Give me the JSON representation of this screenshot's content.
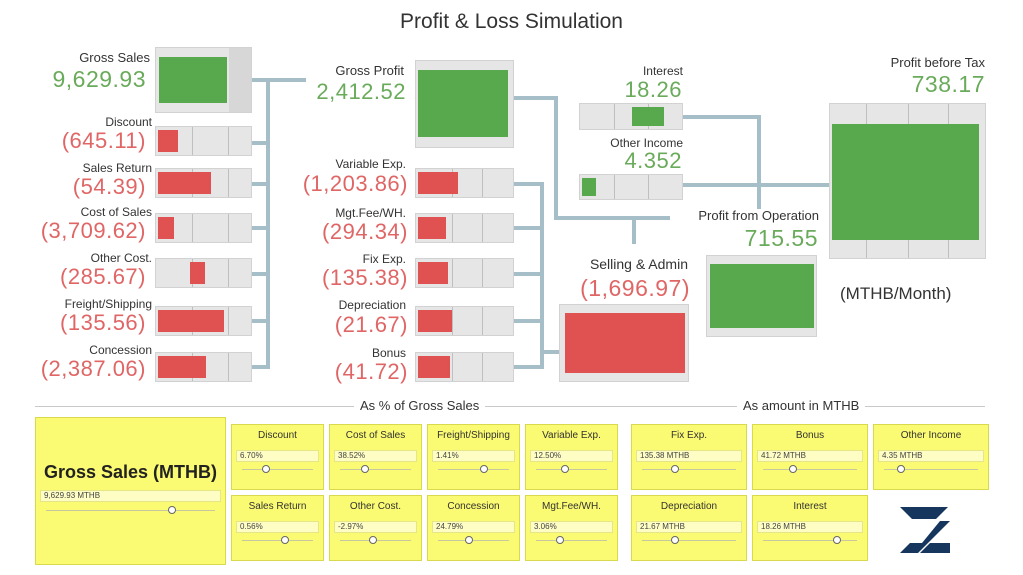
{
  "title": "Profit & Loss Simulation",
  "unit_note": "(MTHB/Month)",
  "colors": {
    "positive": "#6aab5b",
    "negative": "#e06666",
    "bar_red": "#e05252",
    "bar_green": "#58a84e",
    "panel": "#fafa73",
    "connector": "#a5bec8"
  },
  "metrics": {
    "gross_sales": {
      "label": "Gross Sales",
      "value": "9,629.93"
    },
    "discount": {
      "label": "Discount",
      "value": "(645.11)"
    },
    "sales_return": {
      "label": "Sales Return",
      "value": "(54.39)"
    },
    "cost_of_sales": {
      "label": "Cost of Sales",
      "value": "(3,709.62)"
    },
    "other_cost": {
      "label": "Other Cost.",
      "value": "(285.67)"
    },
    "freight": {
      "label": "Freight/Shipping",
      "value": "(135.56)"
    },
    "concession": {
      "label": "Concession",
      "value": "(2,387.06)"
    },
    "gross_profit": {
      "label": "Gross Profit",
      "value": "2,412.52"
    },
    "variable_exp": {
      "label": "Variable Exp.",
      "value": "(1,203.86)"
    },
    "mgt_fee": {
      "label": "Mgt.Fee/WH.",
      "value": "(294.34)"
    },
    "fix_exp": {
      "label": "Fix Exp.",
      "value": "(135.38)"
    },
    "depreciation": {
      "label": "Depreciation",
      "value": "(21.67)"
    },
    "bonus": {
      "label": "Bonus",
      "value": "(41.72)"
    },
    "interest": {
      "label": "Interest",
      "value": "18.26"
    },
    "other_income": {
      "label": "Other Income",
      "value": "4.352"
    },
    "selling_admin": {
      "label": "Selling & Admin",
      "value": "(1,696.97)"
    },
    "profit_operation": {
      "label": "Profit from Operation",
      "value": "715.55"
    },
    "profit_before_tax": {
      "label": "Profit before Tax",
      "value": "738.17"
    }
  },
  "sections": {
    "pct": "As % of Gross Sales",
    "amount": "As amount in MTHB"
  },
  "gross_sales_panel": {
    "title": "Gross Sales (MTHB)",
    "value": "9,629.93 MTHB",
    "slider_fraction": 0.8
  },
  "pct_params": [
    {
      "key": "discount",
      "title": "Discount",
      "value": "6.70%",
      "fraction": 0.3
    },
    {
      "key": "cost_of_sales",
      "title": "Cost of Sales",
      "value": "38.52%",
      "fraction": 0.33
    },
    {
      "key": "freight",
      "title": "Freight/Shipping",
      "value": "1.41%",
      "fraction": 0.65
    },
    {
      "key": "variable_exp",
      "title": "Variable Exp.",
      "value": "12.50%",
      "fraction": 0.38
    },
    {
      "key": "sales_return",
      "title": "Sales Return",
      "value": "0.56%",
      "fraction": 0.6
    },
    {
      "key": "other_cost",
      "title": "Other Cost.",
      "value": "-2.97%",
      "fraction": 0.45
    },
    {
      "key": "concession",
      "title": "Concession",
      "value": "24.79%",
      "fraction": 0.42
    },
    {
      "key": "mgt_fee",
      "title": "Mgt.Fee/WH.",
      "value": "3.06%",
      "fraction": 0.3
    }
  ],
  "amount_params": [
    {
      "key": "fix_exp",
      "title": "Fix Exp.",
      "value": "135.38 MTHB",
      "fraction": 0.33
    },
    {
      "key": "bonus",
      "title": "Bonus",
      "value": "41.72 MTHB",
      "fraction": 0.3
    },
    {
      "key": "other_income",
      "title": "Other Income",
      "value": "4.35 MTHB",
      "fraction": 0.15
    },
    {
      "key": "depreciation",
      "title": "Depreciation",
      "value": "21.67 MTHB",
      "fraction": 0.33
    },
    {
      "key": "interest",
      "title": "Interest",
      "value": "18.26 MTHB",
      "fraction": 0.8
    }
  ],
  "logo_icon": "z-logo-icon"
}
